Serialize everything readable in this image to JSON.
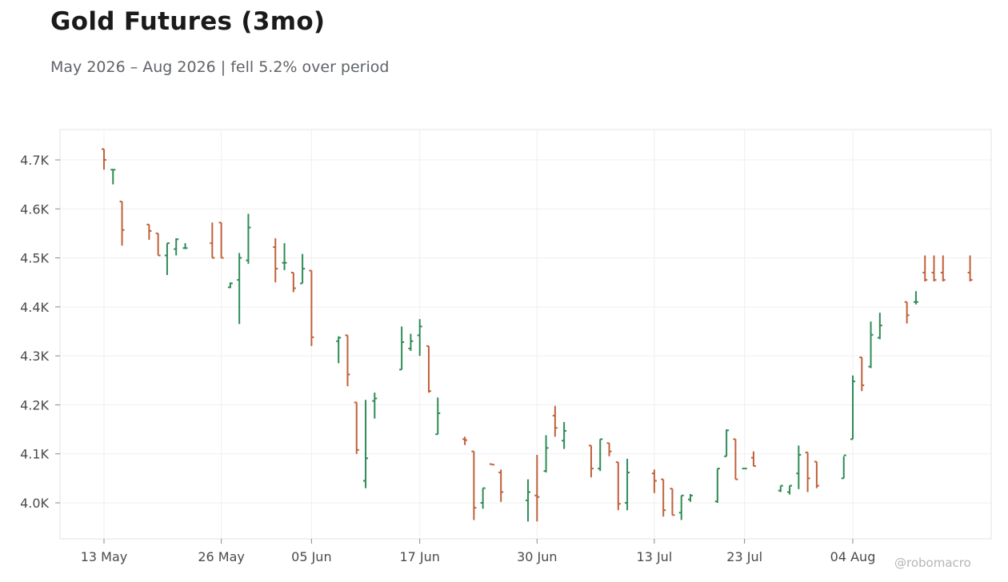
{
  "chart_data": {
    "type": "ohlc",
    "title": "Gold Futures (3mo)",
    "subtitle": "May 2026 – Aug 2026 | fell 5.2% over period",
    "credit": "@robomacro",
    "ylim": [
      3945,
      4760
    ],
    "y_ticks": [
      {
        "value": 4000,
        "label": "4.0K"
      },
      {
        "value": 4100,
        "label": "4.1K"
      },
      {
        "value": 4200,
        "label": "4.2K"
      },
      {
        "value": 4300,
        "label": "4.3K"
      },
      {
        "value": 4400,
        "label": "4.4K"
      },
      {
        "value": 4500,
        "label": "4.5K"
      },
      {
        "value": 4600,
        "label": "4.6K"
      },
      {
        "value": 4700,
        "label": "4.7K"
      }
    ],
    "x_ticks": [
      {
        "value": "2026-05-13",
        "label": "13 May"
      },
      {
        "value": "2026-05-26",
        "label": "26 May"
      },
      {
        "value": "2026-06-05",
        "label": "05 Jun"
      },
      {
        "value": "2026-06-17",
        "label": "17 Jun"
      },
      {
        "value": "2026-06-30",
        "label": "30 Jun"
      },
      {
        "value": "2026-07-13",
        "label": "13 Jul"
      },
      {
        "value": "2026-07-23",
        "label": "23 Jul"
      },
      {
        "value": "2026-08-04",
        "label": "04 Aug"
      }
    ],
    "grid": true,
    "up_color": "#2e8b57",
    "down_color": "#c0603a",
    "x": [
      "2026-05-13",
      "2026-05-14",
      "2026-05-15",
      "2026-05-18",
      "2026-05-19",
      "2026-05-20",
      "2026-05-21",
      "2026-05-22",
      "2026-05-25",
      "2026-05-26",
      "2026-05-27",
      "2026-05-28",
      "2026-05-29",
      "2026-06-01",
      "2026-06-02",
      "2026-06-03",
      "2026-06-04",
      "2026-06-05",
      "2026-06-08",
      "2026-06-09",
      "2026-06-10",
      "2026-06-11",
      "2026-06-12",
      "2026-06-15",
      "2026-06-16",
      "2026-06-17",
      "2026-06-18",
      "2026-06-19",
      "2026-06-22",
      "2026-06-23",
      "2026-06-24",
      "2026-06-25",
      "2026-06-26",
      "2026-06-29",
      "2026-06-30",
      "2026-07-01",
      "2026-07-02",
      "2026-07-03",
      "2026-07-06",
      "2026-07-07",
      "2026-07-08",
      "2026-07-09",
      "2026-07-10",
      "2026-07-13",
      "2026-07-14",
      "2026-07-15",
      "2026-07-16",
      "2026-07-17",
      "2026-07-20",
      "2026-07-21",
      "2026-07-22",
      "2026-07-23",
      "2026-07-24",
      "2026-07-27",
      "2026-07-28",
      "2026-07-29",
      "2026-07-30",
      "2026-07-31",
      "2026-08-03",
      "2026-08-04",
      "2026-08-05",
      "2026-08-06",
      "2026-08-07",
      "2026-08-10",
      "2026-08-11",
      "2026-08-12",
      "2026-08-13",
      "2026-08-14",
      "2026-08-17"
    ],
    "open": [
      4722,
      4680,
      4615,
      4568,
      4550,
      4505,
      4518,
      4520,
      4530,
      4572,
      4440,
      4455,
      4495,
      4522,
      4490,
      4470,
      4448,
      4474,
      4330,
      4342,
      4205,
      4045,
      4208,
      4272,
      4315,
      4342,
      4320,
      4140,
      4130,
      4105,
      4000,
      4079,
      4062,
      4005,
      4015,
      4065,
      4178,
      4127,
      4117,
      4070,
      4122,
      4083,
      4000,
      4060,
      4048,
      4029,
      3980,
      4007,
      4003,
      4095,
      4130,
      4070,
      4092,
      4025,
      4022,
      4060,
      4103,
      4084,
      4050,
      4130,
      4297,
      4278,
      4337,
      4410,
      4410,
      4470,
      4470,
      4470,
      4470
    ],
    "high": [
      4722,
      4680,
      4615,
      4568,
      4550,
      4530,
      4540,
      4530,
      4572,
      4572,
      4450,
      4510,
      4590,
      4540,
      4530,
      4470,
      4508,
      4474,
      4340,
      4342,
      4205,
      4210,
      4225,
      4360,
      4345,
      4375,
      4320,
      4215,
      4135,
      4105,
      4030,
      4079,
      4068,
      4048,
      4098,
      4138,
      4198,
      4165,
      4117,
      4130,
      4122,
      4083,
      4090,
      4068,
      4048,
      4029,
      4015,
      4018,
      4070,
      4150,
      4130,
      4070,
      4105,
      4035,
      4035,
      4117,
      4103,
      4084,
      4095,
      4260,
      4297,
      4370,
      4388,
      4410,
      4432,
      4505,
      4505,
      4505,
      4505
    ],
    "high_note": "",
    "low": [
      4680,
      4650,
      4525,
      4537,
      4505,
      4465,
      4505,
      4518,
      4500,
      4500,
      4438,
      4365,
      4488,
      4450,
      4475,
      4430,
      4448,
      4320,
      4285,
      4238,
      4100,
      4030,
      4172,
      4272,
      4310,
      4300,
      4225,
      4140,
      4118,
      3965,
      3988,
      4078,
      4002,
      3962,
      3962,
      4062,
      4135,
      4110,
      4052,
      4065,
      4095,
      3985,
      3985,
      4020,
      3972,
      3975,
      3965,
      4002,
      4000,
      4095,
      4048,
      4070,
      4075,
      4022,
      4017,
      4028,
      4022,
      4030,
      4050,
      4130,
      4228,
      4275,
      4334,
      4366,
      4405,
      4452,
      4452,
      4452,
      4452
    ],
    "close": [
      4700,
      4680,
      4557,
      4555,
      4505,
      4530,
      4538,
      4520,
      4500,
      4500,
      4448,
      4500,
      4562,
      4478,
      4490,
      4438,
      4478,
      4338,
      4337,
      4262,
      4108,
      4091,
      4213,
      4328,
      4330,
      4360,
      4228,
      4183,
      4128,
      3990,
      4030,
      4078,
      4022,
      4022,
      4012,
      4112,
      4153,
      4147,
      4070,
      4130,
      4105,
      3998,
      4062,
      4045,
      3985,
      3975,
      4015,
      4015,
      4070,
      4148,
      4048,
      4070,
      4075,
      4035,
      4035,
      4098,
      4050,
      4035,
      4097,
      4248,
      4240,
      4343,
      4362,
      4383,
      4410,
      4455,
      4455,
      4455,
      4455
    ]
  }
}
